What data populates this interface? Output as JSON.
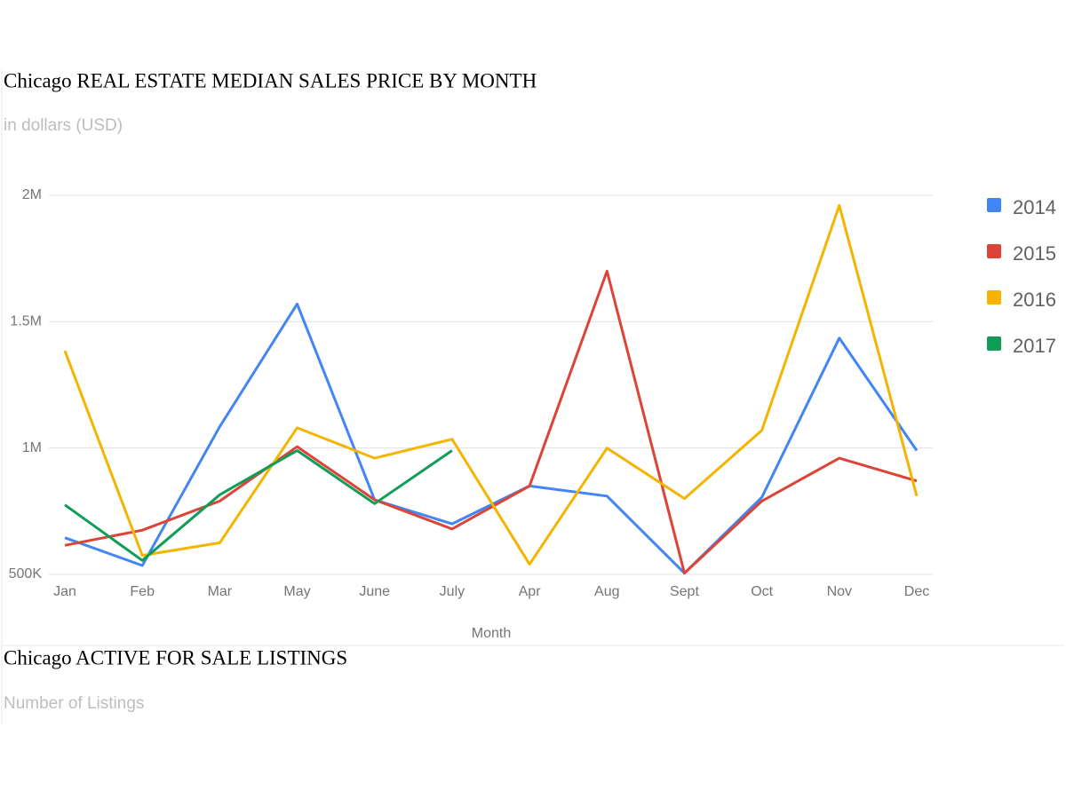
{
  "chart_data": [
    {
      "type": "line",
      "title": "Chicago REAL ESTATE MEDIAN SALES PRICE BY MONTH",
      "subtitle": "in dollars (USD)",
      "x_label": "Month",
      "categories": [
        "Jan",
        "Feb",
        "Mar",
        "May",
        "June",
        "July",
        "Apr",
        "Aug",
        "Sept",
        "Oct",
        "Nov",
        "Dec"
      ],
      "series": [
        {
          "name": "2014",
          "color": "#4285f4",
          "values": [
            645000,
            535000,
            1085000,
            1570000,
            795000,
            700000,
            850000,
            810000,
            505000,
            805000,
            1435000,
            990000
          ]
        },
        {
          "name": "2015",
          "color": "#db4437",
          "values": [
            615000,
            675000,
            790000,
            1005000,
            795000,
            680000,
            850000,
            1700000,
            505000,
            790000,
            960000,
            870000
          ]
        },
        {
          "name": "2016",
          "color": "#f4b400",
          "values": [
            1385000,
            575000,
            625000,
            1080000,
            960000,
            1035000,
            540000,
            1000000,
            800000,
            1070000,
            1960000,
            810000
          ]
        },
        {
          "name": "2017",
          "color": "#0f9d58",
          "values": [
            775000,
            555000,
            815000,
            990000,
            780000,
            990000,
            null,
            null,
            null,
            null,
            null,
            null
          ]
        }
      ],
      "ylim": [
        500000,
        2000000
      ],
      "yticks": [
        {
          "value": 500000,
          "label": "500K"
        },
        {
          "value": 1000000,
          "label": "1M"
        },
        {
          "value": 1500000,
          "label": "1.5M"
        },
        {
          "value": 2000000,
          "label": "2M"
        }
      ],
      "grid": true,
      "legend": "right"
    },
    {
      "title": "Chicago ACTIVE FOR SALE LISTINGS",
      "subtitle": "Number of Listings"
    }
  ]
}
